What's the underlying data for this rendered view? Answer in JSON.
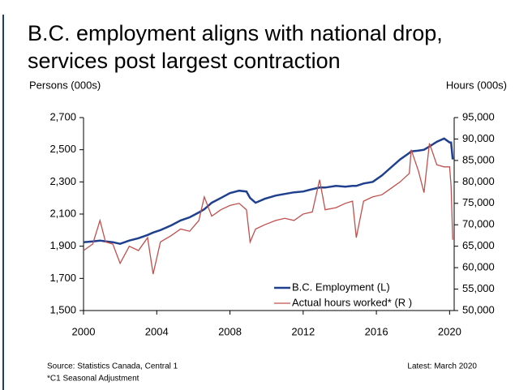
{
  "chart_data": {
    "type": "line",
    "title": "B.C. employment aligns with national drop, services post largest contraction",
    "y_label": "Persons (000s)",
    "y2_label": "Hours (000s)",
    "source": "Source: Statistics Canada, Central 1",
    "footnote": "*C1 Seasonal Adjustment",
    "latest": "Latest: March 2020",
    "x": [
      2000.0,
      2000.5,
      2000.9,
      2001.2,
      2001.6,
      2002.0,
      2002.5,
      2003.0,
      2003.5,
      2003.8,
      2004.2,
      2004.8,
      2005.3,
      2005.8,
      2006.3,
      2006.6,
      2007.0,
      2007.5,
      2008.0,
      2008.5,
      2008.9,
      2009.1,
      2009.4,
      2009.9,
      2010.5,
      2011.0,
      2011.5,
      2012.0,
      2012.5,
      2012.9,
      2013.2,
      2013.8,
      2014.3,
      2014.7,
      2014.9,
      2015.3,
      2015.8,
      2016.3,
      2016.8,
      2017.3,
      2017.8,
      2017.9,
      2018.3,
      2018.6,
      2018.9,
      2019.3,
      2019.7,
      2020.0,
      2020.08,
      2020.17
    ],
    "series": [
      {
        "name": "B.C. Employment (L)",
        "color": "#1f3f8f",
        "axis": "y",
        "values": [
          1925,
          1930,
          1935,
          1930,
          1925,
          1915,
          1935,
          1950,
          1970,
          1985,
          2000,
          2030,
          2060,
          2080,
          2110,
          2130,
          2170,
          2200,
          2230,
          2245,
          2240,
          2200,
          2170,
          2195,
          2215,
          2225,
          2235,
          2240,
          2255,
          2265,
          2265,
          2275,
          2270,
          2275,
          2275,
          2290,
          2300,
          2340,
          2390,
          2440,
          2480,
          2490,
          2495,
          2500,
          2520,
          2550,
          2570,
          2545,
          2545,
          2440
        ]
      },
      {
        "name": "Actual hours worked* (R )",
        "color": "#c0504d",
        "axis": "y2",
        "values": [
          64000,
          65500,
          71000,
          66000,
          65500,
          61000,
          65000,
          64000,
          67000,
          58500,
          66000,
          67500,
          69000,
          68500,
          71000,
          76500,
          72000,
          73500,
          74500,
          75000,
          73500,
          66000,
          69000,
          70000,
          71000,
          71500,
          71000,
          72500,
          73000,
          80500,
          73500,
          74000,
          75000,
          75500,
          67000,
          75500,
          76500,
          77000,
          78500,
          80000,
          82000,
          87500,
          82500,
          77500,
          89000,
          84000,
          83500,
          83500,
          79000,
          66500
        ]
      }
    ],
    "xlim": [
      2000,
      2020.25
    ],
    "xticks": [
      2000,
      2004,
      2008,
      2012,
      2016,
      2020
    ],
    "ylim": [
      1500,
      2700
    ],
    "yticks": [
      {
        "value": 1500,
        "label": "1,500"
      },
      {
        "value": 1700,
        "label": "1,700"
      },
      {
        "value": 1900,
        "label": "1,900"
      },
      {
        "value": 2100,
        "label": "2,100"
      },
      {
        "value": 2300,
        "label": "2,300"
      },
      {
        "value": 2500,
        "label": "2,500"
      },
      {
        "value": 2700,
        "label": "2,700"
      }
    ],
    "y2lim": [
      50000,
      95000
    ],
    "y2ticks": [
      {
        "value": 50000,
        "label": "50,000"
      },
      {
        "value": 55000,
        "label": "55,000"
      },
      {
        "value": 60000,
        "label": "60,000"
      },
      {
        "value": 65000,
        "label": "65,000"
      },
      {
        "value": 70000,
        "label": "70,000"
      },
      {
        "value": 75000,
        "label": "75,000"
      },
      {
        "value": 80000,
        "label": "80,000"
      },
      {
        "value": 85000,
        "label": "85,000"
      },
      {
        "value": 90000,
        "label": "90,000"
      },
      {
        "value": 95000,
        "label": "95,000"
      }
    ],
    "grid": false
  }
}
